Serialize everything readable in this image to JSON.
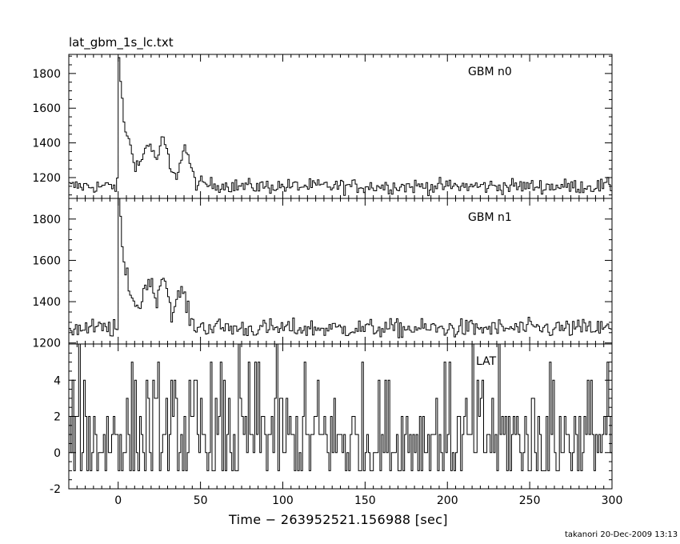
{
  "file_title": "lat_gbm_1s_lc.txt",
  "x_label": "Time − 263952521.156988 [sec]",
  "footer": {
    "user": "takanori",
    "date": "20-Dec-2009",
    "time": "13:13"
  },
  "chart_data": [
    {
      "type": "line",
      "panel_label": "GBM n0",
      "xlim": [
        -30,
        300
      ],
      "ylim": [
        1080,
        1910
      ],
      "x_ticks": [
        0,
        50,
        100,
        150,
        200,
        250,
        300
      ],
      "y_ticks": [
        1200,
        1400,
        1600,
        1800
      ],
      "grid": false,
      "features": {
        "baseline": 1150,
        "noise": 30,
        "peaks": [
          {
            "x": 0,
            "y": 1900
          },
          {
            "x": 18,
            "y": 1380
          },
          {
            "x": 27,
            "y": 1420
          },
          {
            "x": 40,
            "y": 1390
          }
        ]
      }
    },
    {
      "type": "line",
      "panel_label": "GBM n1",
      "xlim": [
        -30,
        300
      ],
      "ylim": [
        1195,
        1900
      ],
      "x_ticks": [
        0,
        50,
        100,
        150,
        200,
        250,
        300
      ],
      "y_ticks": [
        1200,
        1400,
        1600,
        1800
      ],
      "grid": false,
      "features": {
        "baseline": 1270,
        "noise": 32,
        "peaks": [
          {
            "x": 0,
            "y": 1890
          },
          {
            "x": 18,
            "y": 1500
          },
          {
            "x": 27,
            "y": 1540
          },
          {
            "x": 38,
            "y": 1470
          }
        ]
      }
    },
    {
      "type": "line",
      "panel_label": "LAT",
      "xlim": [
        -30,
        300
      ],
      "ylim": [
        -2,
        6
      ],
      "x_ticks": [
        0,
        50,
        100,
        150,
        200,
        250,
        300
      ],
      "y_ticks": [
        -2,
        0,
        2,
        4
      ],
      "grid": false,
      "features": {
        "levels": [
          -1,
          0,
          1,
          2,
          3,
          4,
          5,
          6
        ],
        "mean": 0.9
      }
    }
  ]
}
